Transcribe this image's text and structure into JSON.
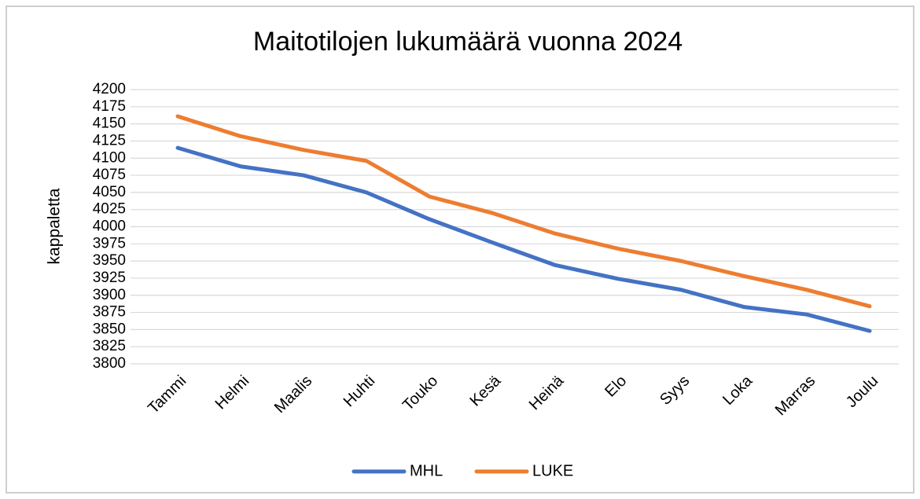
{
  "chart_data": {
    "type": "line",
    "title": "Maitotilojen lukumäärä vuonna 2024",
    "y_label": "kappaletta",
    "categories": [
      "Tammi",
      "Helmi",
      "Maalis",
      "Huhti",
      "Touko",
      "Kesä",
      "Heinä",
      "Elo",
      "Syys",
      "Loka",
      "Marras",
      "Joulu"
    ],
    "series": [
      {
        "name": "MHL",
        "color": "#4472c4",
        "values": [
          4115,
          4088,
          4075,
          4050,
          4011,
          3977,
          3944,
          3924,
          3908,
          3883,
          3872,
          3848
        ]
      },
      {
        "name": "LUKE",
        "color": "#ed7d31",
        "values": [
          4161,
          4132,
          4112,
          4096,
          4044,
          4020,
          3990,
          3968,
          3950,
          3928,
          3908,
          3884
        ]
      }
    ],
    "ylim": [
      3800,
      4200
    ],
    "yticks": [
      3800,
      3825,
      3850,
      3875,
      3900,
      3925,
      3950,
      3975,
      4000,
      4025,
      4050,
      4075,
      4100,
      4125,
      4150,
      4175,
      4200
    ],
    "grid": true,
    "legend": "bottom"
  }
}
